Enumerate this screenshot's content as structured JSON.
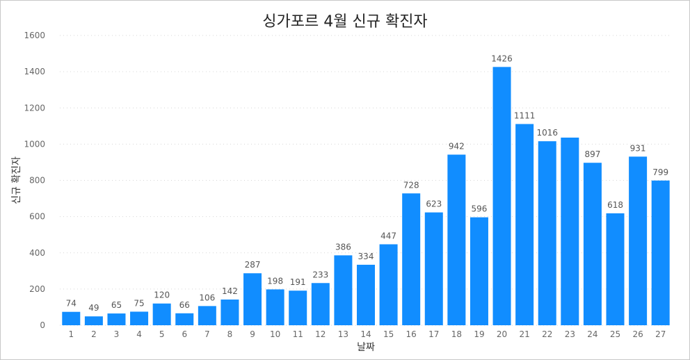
{
  "chart_data": {
    "type": "bar",
    "title": "싱가포르 4월 신규 확진자",
    "xlabel": "날짜",
    "ylabel": "신규 확진자",
    "categories": [
      "1",
      "2",
      "3",
      "4",
      "5",
      "6",
      "7",
      "8",
      "9",
      "10",
      "11",
      "12",
      "13",
      "14",
      "15",
      "16",
      "17",
      "18",
      "19",
      "20",
      "21",
      "22",
      "23",
      "24",
      "25",
      "26",
      "27"
    ],
    "values": [
      74,
      49,
      65,
      75,
      120,
      66,
      106,
      142,
      287,
      198,
      191,
      233,
      386,
      334,
      447,
      728,
      623,
      942,
      596,
      1426,
      1111,
      1016,
      null,
      897,
      618,
      931,
      799
    ],
    "estimated_unlabeled": {
      "23": 1036
    },
    "data_labels": [
      "74",
      "49",
      "65",
      "75",
      "120",
      "66",
      "106",
      "142",
      "287",
      "198",
      "191",
      "233",
      "386",
      "334",
      "447",
      "728",
      "623",
      "942",
      "596",
      "1426",
      "1111",
      "1016",
      "",
      "897",
      "618",
      "931",
      "799"
    ],
    "ylim": [
      0,
      1600
    ],
    "yticks": [
      0,
      200,
      400,
      600,
      800,
      1000,
      1200,
      1400,
      1600
    ],
    "grid": true,
    "bar_color": "#118DFF"
  }
}
